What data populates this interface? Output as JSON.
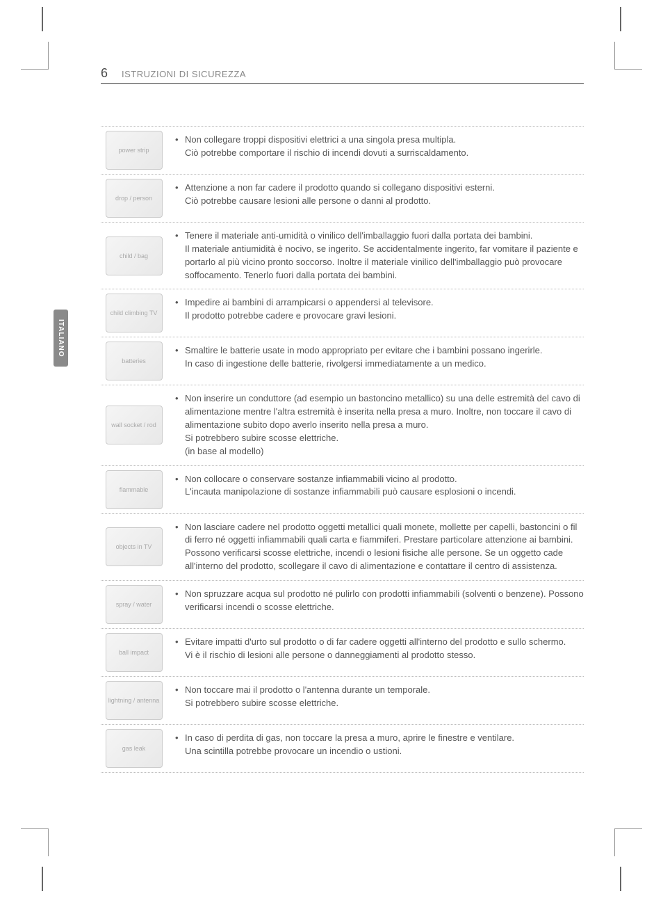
{
  "page_number": "6",
  "section_title": "ISTRUZIONI DI SICUREZZA",
  "language_tab": "ITALIANO",
  "bullet_char": "•",
  "colors": {
    "text": "#555555",
    "title_muted": "#888888",
    "divider": "#bbbbbb",
    "header_rule": "#333333",
    "tab_bg": "#8a8a8a",
    "tab_text": "#ffffff",
    "icon_border": "#cccccc"
  },
  "rows": [
    {
      "icon_hint": "power strip",
      "main": "Non collegare troppi dispositivi elettrici a una singola presa multipla.",
      "sub": "Ciò potrebbe comportare il rischio di incendi dovuti a surriscaldamento."
    },
    {
      "icon_hint": "drop / person",
      "main": "Attenzione a non far cadere il prodotto quando si collegano dispositivi esterni.",
      "sub": "Ciò potrebbe causare lesioni alle persone o danni al prodotto."
    },
    {
      "icon_hint": "child / bag",
      "main": "Tenere il materiale anti-umidità o vinilico dell'imballaggio fuori dalla portata dei bambini.",
      "sub": "Il materiale antiumidità è nocivo, se ingerito. Se accidentalmente ingerito, far vomitare il paziente e portarlo al più vicino pronto soccorso. Inoltre il materiale vinilico dell'imballaggio può provocare soffocamento. Tenerlo fuori dalla portata dei bambini."
    },
    {
      "icon_hint": "child climbing TV",
      "main": "Impedire ai bambini di arrampicarsi o appendersi al televisore.",
      "sub": "Il prodotto potrebbe cadere e provocare gravi lesioni."
    },
    {
      "icon_hint": "batteries",
      "main": "Smaltire le batterie usate in modo appropriato per evitare che i bambini possano ingerirle.",
      "sub": "In caso di ingestione delle batterie, rivolgersi immediatamente a un medico."
    },
    {
      "icon_hint": "wall socket / rod",
      "main": "Non inserire un conduttore (ad esempio un bastoncino metallico) su una delle estremità del cavo di alimentazione mentre l'altra estremità è inserita nella presa a muro. Inoltre, non toccare il cavo di alimentazione subito dopo averlo inserito nella presa a muro.",
      "sub": "Si potrebbero subire scosse elettriche.\n(in base al modello)"
    },
    {
      "icon_hint": "flammable",
      "main": "Non collocare o conservare sostanze infiammabili vicino al prodotto.",
      "sub": "L'incauta manipolazione di sostanze infiammabili può causare esplosioni o incendi."
    },
    {
      "icon_hint": "objects in TV",
      "main": "Non lasciare cadere nel prodotto oggetti metallici quali monete, mollette per capelli, bastoncini o fil di ferro né oggetti infiammabili quali carta e fiammiferi. Prestare particolare attenzione ai bambini.",
      "sub": "Possono verificarsi scosse elettriche, incendi o lesioni fisiche alle persone. Se un oggetto cade all'interno del prodotto, scollegare il cavo di alimentazione e contattare il centro di assistenza."
    },
    {
      "icon_hint": "spray / water",
      "main": "Non spruzzare acqua sul prodotto né pulirlo con prodotti infiammabili (solventi o benzene). Possono verificarsi incendi o scosse elettriche.",
      "sub": ""
    },
    {
      "icon_hint": "ball impact",
      "main": "Evitare impatti d'urto sul prodotto o di far cadere oggetti all'interno del prodotto e sullo schermo.",
      "sub": "Vi è il rischio di lesioni alle persone o danneggiamenti al prodotto stesso."
    },
    {
      "icon_hint": "lightning / antenna",
      "main": "Non toccare mai il prodotto o l'antenna durante un temporale.",
      "sub": "Si potrebbero subire scosse elettriche."
    },
    {
      "icon_hint": "gas leak",
      "main": "In caso di perdita di gas, non toccare la presa a muro, aprire le finestre e ventilare.",
      "sub": "Una scintilla potrebbe provocare un incendio o ustioni."
    }
  ]
}
